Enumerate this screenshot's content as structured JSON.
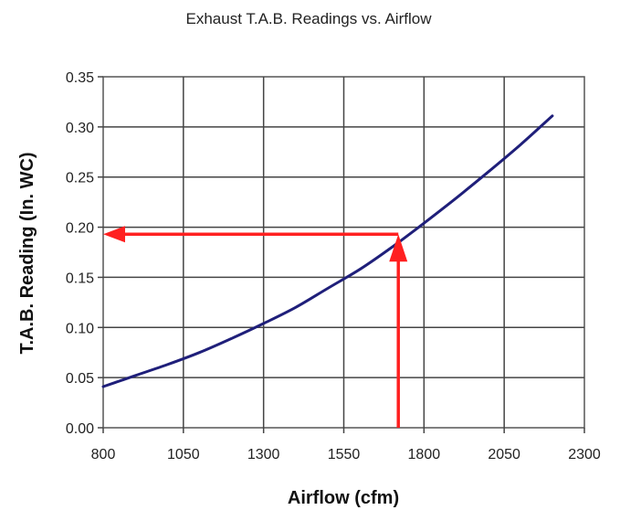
{
  "chart_data": {
    "type": "line",
    "title": "Exhaust T.A.B. Readings vs. Airflow",
    "xlabel": "Airflow (cfm)",
    "ylabel": "T.A.B. Reading (In. WC)",
    "xlim": [
      800,
      2300
    ],
    "ylim": [
      0,
      0.35
    ],
    "x_ticks": [
      "800",
      "1050",
      "1300",
      "1550",
      "1800",
      "2050",
      "2300"
    ],
    "y_ticks": [
      "0.00",
      "0.05",
      "0.10",
      "0.15",
      "0.20",
      "0.25",
      "0.30",
      "0.35"
    ],
    "x_tick_values": [
      800,
      1050,
      1300,
      1550,
      1800,
      2050,
      2300
    ],
    "y_tick_values": [
      0,
      0.05,
      0.1,
      0.15,
      0.2,
      0.25,
      0.3,
      0.35
    ],
    "grid": true,
    "series": [
      {
        "color": "#1f1f7a",
        "x": [
          800,
          900,
          1000,
          1100,
          1200,
          1300,
          1400,
          1500,
          1600,
          1700,
          1800,
          1900,
          2000,
          2100,
          2200
        ],
        "y": [
          0.041,
          0.052,
          0.063,
          0.075,
          0.089,
          0.104,
          0.12,
          0.139,
          0.158,
          0.18,
          0.204,
          0.229,
          0.255,
          0.282,
          0.311
        ]
      }
    ],
    "annotations": {
      "color": "#ff2020",
      "vertical_arrow": {
        "x": 1720,
        "y_from": 0,
        "y_to": 0.193
      },
      "horizontal_arrow": {
        "y": 0.193,
        "x_from": 1720,
        "x_to": 800
      }
    }
  }
}
